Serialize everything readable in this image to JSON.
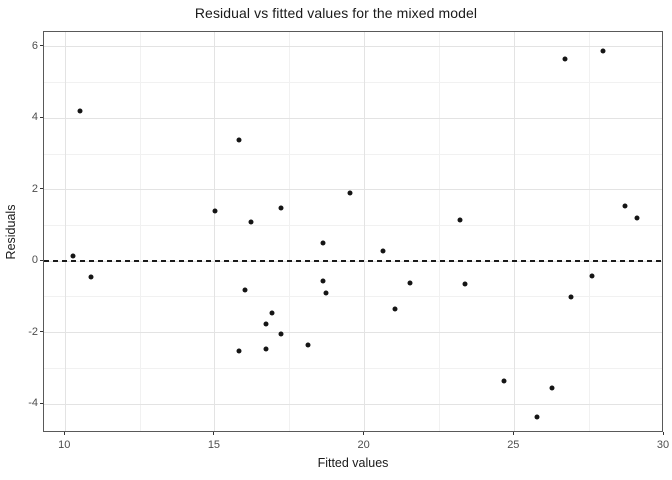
{
  "chart_data": {
    "type": "scatter",
    "title": "Residual vs fitted values for the mixed model",
    "xlabel": "Fitted values",
    "ylabel": "Residuals",
    "xlim": [
      9.29,
      30.0
    ],
    "ylim": [
      -4.81,
      6.42
    ],
    "x_major_ticks": [
      10,
      15,
      20,
      25,
      30
    ],
    "x_tick_labels": [
      "10",
      "15",
      "20",
      "25",
      "30"
    ],
    "x_minor_gridlines": [
      12.5,
      17.5,
      22.5,
      27.5
    ],
    "y_major_ticks": [
      -4,
      -2,
      0,
      2,
      4,
      6
    ],
    "y_tick_labels": [
      "-4",
      "-2",
      "0",
      "2",
      "4",
      "6"
    ],
    "y_minor_gridlines": [
      -3,
      -1,
      1,
      3,
      5
    ],
    "grid": "major and minor, light gray on white panel",
    "legend": "none",
    "reference_line": {
      "y": 0,
      "style": "dashed",
      "color": "#1a1a1a"
    },
    "points": [
      [
        10.25,
        0.15
      ],
      [
        10.5,
        4.2
      ],
      [
        10.85,
        -0.45
      ],
      [
        15.0,
        1.4
      ],
      [
        15.8,
        3.4
      ],
      [
        15.8,
        -2.5
      ],
      [
        16.0,
        -0.8
      ],
      [
        16.2,
        1.1
      ],
      [
        16.7,
        -1.75
      ],
      [
        16.7,
        -2.45
      ],
      [
        16.9,
        -1.45
      ],
      [
        17.2,
        1.5
      ],
      [
        17.2,
        -2.05
      ],
      [
        18.1,
        -2.35
      ],
      [
        18.6,
        0.5
      ],
      [
        18.6,
        -0.55
      ],
      [
        18.7,
        -0.9
      ],
      [
        19.5,
        1.9
      ],
      [
        20.6,
        0.3
      ],
      [
        21.0,
        -1.35
      ],
      [
        21.5,
        -0.6
      ],
      [
        23.2,
        1.15
      ],
      [
        23.35,
        -0.65
      ],
      [
        24.65,
        -3.35
      ],
      [
        25.75,
        -4.35
      ],
      [
        26.25,
        -3.55
      ],
      [
        26.7,
        5.65
      ],
      [
        26.9,
        -1.0
      ],
      [
        27.6,
        -0.4
      ],
      [
        27.95,
        5.9
      ],
      [
        28.7,
        1.55
      ],
      [
        29.1,
        1.2
      ]
    ],
    "colors": {
      "background": "#ffffff",
      "panel_border": "#595959",
      "grid_major": "#e3e3e3",
      "grid_minor": "#f1f1f1",
      "tick": "#333333",
      "tick_label": "#4d4d4d",
      "axis_title": "#1a1a1a",
      "title": "#1a1a1a",
      "point": "#151515"
    }
  }
}
